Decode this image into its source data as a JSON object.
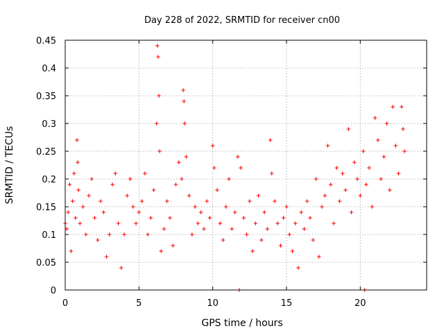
{
  "chart_data": {
    "type": "scatter",
    "title": "Day 228 of 2022, SRMTID for receiver cn00",
    "xlabel": "GPS time / hours",
    "ylabel": "SRMTID / TECUs",
    "xlim": [
      0,
      24.5
    ],
    "ylim": [
      0,
      0.45
    ],
    "x_ticks": [
      0,
      5,
      10,
      15,
      20
    ],
    "x_tick_labels": [
      "0",
      "5",
      "10",
      "15",
      "20"
    ],
    "y_ticks": [
      0,
      0.05,
      0.1,
      0.15,
      0.2,
      0.25,
      0.3,
      0.35,
      0.4,
      0.45
    ],
    "y_tick_labels": [
      "0",
      "0.05",
      "0.1",
      "0.15",
      "0.2",
      "0.25",
      "0.3",
      "0.35",
      "0.4",
      "0.45"
    ],
    "grid": true,
    "marker": "plus",
    "color": "#ff0000",
    "series": [
      {
        "name": "SRMTID",
        "points": [
          [
            0.0,
            0.12
          ],
          [
            0.1,
            0.11
          ],
          [
            0.2,
            0.14
          ],
          [
            0.3,
            0.19
          ],
          [
            0.4,
            0.07
          ],
          [
            0.5,
            0.16
          ],
          [
            0.6,
            0.21
          ],
          [
            0.7,
            0.13
          ],
          [
            0.8,
            0.27
          ],
          [
            0.85,
            0.23
          ],
          [
            0.9,
            0.18
          ],
          [
            1.0,
            0.12
          ],
          [
            1.2,
            0.15
          ],
          [
            1.4,
            0.1
          ],
          [
            1.6,
            0.17
          ],
          [
            1.8,
            0.2
          ],
          [
            2.0,
            0.13
          ],
          [
            2.2,
            0.09
          ],
          [
            2.4,
            0.16
          ],
          [
            2.6,
            0.14
          ],
          [
            2.8,
            0.06
          ],
          [
            3.0,
            0.1
          ],
          [
            3.2,
            0.19
          ],
          [
            3.4,
            0.21
          ],
          [
            3.6,
            0.12
          ],
          [
            3.8,
            0.04
          ],
          [
            4.0,
            0.1
          ],
          [
            4.2,
            0.17
          ],
          [
            4.4,
            0.2
          ],
          [
            4.6,
            0.15
          ],
          [
            4.8,
            0.12
          ],
          [
            5.0,
            0.14
          ],
          [
            5.2,
            0.16
          ],
          [
            5.4,
            0.21
          ],
          [
            5.6,
            0.1
          ],
          [
            5.8,
            0.13
          ],
          [
            6.0,
            0.18
          ],
          [
            6.2,
            0.3
          ],
          [
            6.25,
            0.44
          ],
          [
            6.3,
            0.42
          ],
          [
            6.35,
            0.35
          ],
          [
            6.4,
            0.25
          ],
          [
            6.5,
            0.07
          ],
          [
            6.7,
            0.11
          ],
          [
            6.9,
            0.16
          ],
          [
            7.1,
            0.13
          ],
          [
            7.3,
            0.08
          ],
          [
            7.5,
            0.19
          ],
          [
            7.7,
            0.23
          ],
          [
            7.9,
            0.2
          ],
          [
            8.0,
            0.36
          ],
          [
            8.05,
            0.34
          ],
          [
            8.1,
            0.3
          ],
          [
            8.2,
            0.24
          ],
          [
            8.4,
            0.17
          ],
          [
            8.6,
            0.1
          ],
          [
            8.8,
            0.15
          ],
          [
            9.0,
            0.12
          ],
          [
            9.2,
            0.14
          ],
          [
            9.4,
            0.11
          ],
          [
            9.6,
            0.16
          ],
          [
            9.8,
            0.13
          ],
          [
            10.0,
            0.26
          ],
          [
            10.1,
            0.22
          ],
          [
            10.3,
            0.18
          ],
          [
            10.5,
            0.12
          ],
          [
            10.7,
            0.09
          ],
          [
            10.9,
            0.15
          ],
          [
            11.1,
            0.2
          ],
          [
            11.3,
            0.11
          ],
          [
            11.5,
            0.14
          ],
          [
            11.7,
            0.24
          ],
          [
            11.8,
            0.0
          ],
          [
            11.9,
            0.22
          ],
          [
            12.1,
            0.13
          ],
          [
            12.3,
            0.1
          ],
          [
            12.5,
            0.16
          ],
          [
            12.7,
            0.07
          ],
          [
            12.9,
            0.12
          ],
          [
            13.1,
            0.17
          ],
          [
            13.3,
            0.09
          ],
          [
            13.5,
            0.14
          ],
          [
            13.7,
            0.11
          ],
          [
            13.9,
            0.27
          ],
          [
            14.0,
            0.21
          ],
          [
            14.2,
            0.16
          ],
          [
            14.4,
            0.12
          ],
          [
            14.6,
            0.08
          ],
          [
            14.8,
            0.13
          ],
          [
            15.0,
            0.15
          ],
          [
            15.2,
            0.1
          ],
          [
            15.4,
            0.07
          ],
          [
            15.6,
            0.12
          ],
          [
            15.8,
            0.04
          ],
          [
            16.0,
            0.14
          ],
          [
            16.2,
            0.11
          ],
          [
            16.4,
            0.16
          ],
          [
            16.6,
            0.13
          ],
          [
            16.8,
            0.09
          ],
          [
            17.0,
            0.2
          ],
          [
            17.2,
            0.06
          ],
          [
            17.4,
            0.15
          ],
          [
            17.6,
            0.17
          ],
          [
            17.8,
            0.26
          ],
          [
            18.0,
            0.19
          ],
          [
            18.2,
            0.12
          ],
          [
            18.4,
            0.22
          ],
          [
            18.6,
            0.16
          ],
          [
            18.8,
            0.21
          ],
          [
            19.0,
            0.18
          ],
          [
            19.2,
            0.29
          ],
          [
            19.4,
            0.14
          ],
          [
            19.6,
            0.23
          ],
          [
            19.8,
            0.2
          ],
          [
            20.0,
            0.17
          ],
          [
            20.2,
            0.25
          ],
          [
            20.3,
            0.0
          ],
          [
            20.4,
            0.19
          ],
          [
            20.6,
            0.22
          ],
          [
            20.8,
            0.15
          ],
          [
            21.0,
            0.31
          ],
          [
            21.2,
            0.27
          ],
          [
            21.4,
            0.2
          ],
          [
            21.6,
            0.24
          ],
          [
            21.8,
            0.3
          ],
          [
            22.0,
            0.18
          ],
          [
            22.2,
            0.33
          ],
          [
            22.4,
            0.26
          ],
          [
            22.6,
            0.21
          ],
          [
            22.8,
            0.33
          ],
          [
            22.9,
            0.29
          ],
          [
            23.0,
            0.25
          ]
        ]
      }
    ]
  }
}
